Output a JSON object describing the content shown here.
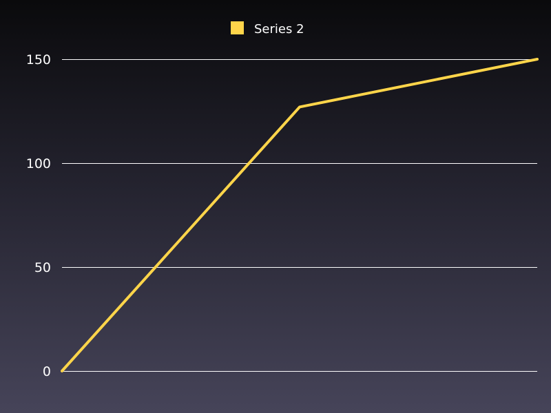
{
  "chart_data": {
    "type": "line",
    "title": "",
    "xlabel": "",
    "ylabel": "",
    "x": [
      1,
      2,
      3
    ],
    "series": [
      {
        "name": "Series 2",
        "color": "#ffd54a",
        "values": [
          0,
          127,
          150
        ]
      }
    ],
    "ylim": [
      0,
      150
    ],
    "yticks": [
      0,
      50,
      100,
      150
    ],
    "ytick_labels": [
      "0",
      "50",
      "100",
      "150"
    ],
    "grid": true,
    "legend_position": "top-center",
    "background": "dark-gradient"
  }
}
